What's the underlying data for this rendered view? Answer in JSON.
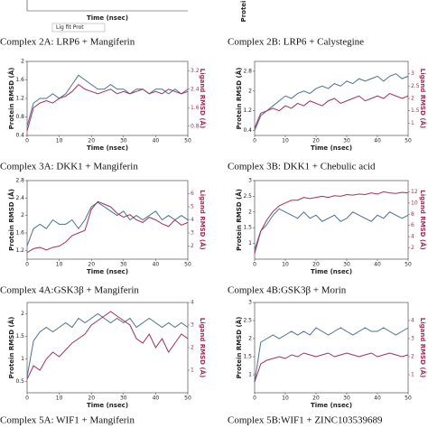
{
  "top_strip": {
    "x_label_left": "Time (nsec)",
    "y_label_right": "Protein",
    "legend": "Lig fit Prot"
  },
  "chart_data": [
    {
      "type": "line",
      "title": "Complex 2A: LRP6 + Mangiferin",
      "x_label": "Time (nsec)",
      "y_label": "Protein RMSD (Å)",
      "y2_label": "Ligand RMSD (Å)",
      "x": [
        0,
        2,
        4,
        6,
        8,
        10,
        12,
        14,
        16,
        18,
        20,
        22,
        24,
        26,
        28,
        30,
        32,
        34,
        36,
        38,
        40,
        42,
        44,
        46,
        48,
        50
      ],
      "xlim": [
        0,
        50
      ],
      "xticks": [
        0,
        10,
        20,
        30,
        40,
        50
      ],
      "ylim": [
        0.4,
        2.0
      ],
      "yticks": [
        0.4,
        0.8,
        1.2,
        1.6,
        2.0
      ],
      "y2lim": [
        0.4,
        3.6
      ],
      "y2ticks": [
        0.8,
        1.6,
        2.4,
        3.2
      ],
      "series": [
        {
          "color": "#4a7090",
          "values": [
            0.6,
            1.1,
            1.2,
            1.2,
            1.3,
            1.2,
            1.3,
            1.5,
            1.7,
            1.6,
            1.5,
            1.4,
            1.4,
            1.5,
            1.4,
            1.4,
            1.3,
            1.4,
            1.4,
            1.3,
            1.4,
            1.4,
            1.3,
            1.4,
            1.3,
            1.4
          ]
        },
        {
          "color": "#a0305a",
          "axis": "y2",
          "values": [
            0.6,
            1.6,
            1.8,
            1.9,
            1.8,
            2.0,
            2.1,
            2.3,
            2.6,
            2.4,
            2.3,
            2.2,
            2.3,
            2.4,
            2.2,
            2.3,
            2.2,
            2.3,
            2.4,
            2.2,
            2.3,
            2.2,
            2.4,
            2.3,
            2.2,
            2.3
          ]
        }
      ]
    },
    {
      "type": "line",
      "title": "Complex 2B: LRP6 + Calystegine",
      "x_label": "Time (nsec)",
      "y_label": "Protein RMSD (Å)",
      "y2_label": "Ligand RMSD (Å)",
      "x": [
        0,
        2,
        4,
        6,
        8,
        10,
        12,
        14,
        16,
        18,
        20,
        22,
        24,
        26,
        28,
        30,
        32,
        34,
        36,
        38,
        40,
        42,
        44,
        46,
        48,
        50
      ],
      "xlim": [
        0,
        50
      ],
      "xticks": [
        0,
        10,
        20,
        30,
        40,
        50
      ],
      "ylim": [
        0.2,
        3.2
      ],
      "yticks": [
        0.4,
        1.2,
        2.0,
        2.8
      ],
      "y2lim": [
        0.5,
        3.5
      ],
      "y2ticks": [
        1,
        1.5,
        2,
        2.5,
        3
      ],
      "series": [
        {
          "color": "#4a7090",
          "values": [
            0.4,
            1.0,
            1.2,
            1.4,
            1.6,
            1.8,
            1.7,
            1.9,
            2.0,
            1.9,
            2.1,
            2.2,
            2.1,
            2.3,
            2.2,
            2.4,
            2.3,
            2.5,
            2.4,
            2.5,
            2.6,
            2.4,
            2.6,
            2.7,
            2.5,
            2.6
          ]
        },
        {
          "color": "#a0305a",
          "axis": "y2",
          "values": [
            0.8,
            1.4,
            1.5,
            1.6,
            1.5,
            1.7,
            1.6,
            1.8,
            1.7,
            1.9,
            1.8,
            1.7,
            1.9,
            2.0,
            1.8,
            1.9,
            2.0,
            2.1,
            1.9,
            2.0,
            2.1,
            2.0,
            2.2,
            2.1,
            2.0,
            2.1
          ]
        }
      ]
    },
    {
      "type": "line",
      "title": "Complex 3A: DKK1 + Mangiferin",
      "x_label": "Time (nsec)",
      "y_label": "Protein RMSD (Å)",
      "y2_label": "Ligand RMSD (Å)",
      "x": [
        0,
        2,
        4,
        6,
        8,
        10,
        12,
        14,
        16,
        18,
        20,
        22,
        24,
        26,
        28,
        30,
        32,
        34,
        36,
        38,
        40,
        42,
        44,
        46,
        48,
        50
      ],
      "xlim": [
        0,
        50
      ],
      "xticks": [
        0,
        10,
        20,
        30,
        40,
        50
      ],
      "ylim": [
        1.0,
        2.8
      ],
      "yticks": [
        1.2,
        1.6,
        2.0,
        2.4,
        2.8
      ],
      "y2lim": [
        1,
        7
      ],
      "y2ticks": [
        2,
        3,
        4,
        5,
        6
      ],
      "series": [
        {
          "color": "#4a7090",
          "values": [
            1.3,
            1.7,
            1.8,
            1.7,
            1.9,
            1.8,
            1.8,
            1.9,
            1.7,
            1.9,
            2.2,
            2.3,
            2.2,
            2.1,
            2.0,
            2.1,
            1.9,
            2.0,
            1.9,
            2.0,
            2.1,
            1.9,
            2.0,
            1.9,
            2.0,
            1.9
          ]
        },
        {
          "color": "#a0305a",
          "axis": "y2",
          "values": [
            1.5,
            1.8,
            1.9,
            1.7,
            1.9,
            2.0,
            2.3,
            2.8,
            3.0,
            3.2,
            4.8,
            5.4,
            5.2,
            5.0,
            4.5,
            4.2,
            4.4,
            4.0,
            3.8,
            4.2,
            4.0,
            3.7,
            3.5,
            4.0,
            3.6,
            3.8
          ]
        }
      ]
    },
    {
      "type": "line",
      "title": "Complex 3B: DKK1 + Chebulic acid",
      "x_label": "Time (nsec)",
      "y_label": "Protein RMSD (Å)",
      "y2_label": "Ligand RMSD (Å)",
      "x": [
        0,
        2,
        4,
        6,
        8,
        10,
        12,
        14,
        16,
        18,
        20,
        22,
        24,
        26,
        28,
        30,
        32,
        34,
        36,
        38,
        40,
        42,
        44,
        46,
        48,
        50
      ],
      "xlim": [
        0,
        50
      ],
      "xticks": [
        0,
        10,
        20,
        30,
        40,
        50
      ],
      "ylim": [
        0.5,
        3.0
      ],
      "yticks": [
        1,
        1.5,
        2,
        2.5,
        3
      ],
      "y2lim": [
        0,
        14
      ],
      "y2ticks": [
        2,
        4,
        6,
        8,
        10,
        12
      ],
      "series": [
        {
          "color": "#4a7090",
          "values": [
            0.8,
            1.4,
            1.6,
            1.9,
            2.1,
            2.0,
            1.9,
            1.8,
            2.0,
            1.8,
            1.9,
            1.7,
            1.8,
            1.9,
            1.7,
            1.8,
            2.0,
            1.9,
            1.8,
            1.7,
            1.9,
            1.8,
            2.0,
            1.9,
            1.8,
            1.9
          ]
        },
        {
          "color": "#a0305a",
          "axis": "y2",
          "values": [
            1.0,
            5.0,
            7.0,
            8.5,
            9.5,
            10.0,
            10.5,
            10.5,
            11.0,
            10.8,
            11.0,
            11.2,
            11.0,
            11.3,
            11.2,
            11.5,
            11.4,
            11.6,
            11.5,
            11.8,
            11.6,
            12.0,
            11.8,
            11.7,
            11.9,
            11.8
          ]
        }
      ]
    },
    {
      "type": "line",
      "title": "Complex 4A:GSK3β + Mangiferin",
      "x_label": "Time (nsec)",
      "y_label": "Protein RMSD (Å)",
      "y2_label": "Ligand RMSD (Å)",
      "x": [
        0,
        2,
        4,
        6,
        8,
        10,
        12,
        14,
        16,
        18,
        20,
        22,
        24,
        26,
        28,
        30,
        32,
        34,
        36,
        38,
        40,
        42,
        44,
        46,
        48,
        50
      ],
      "xlim": [
        0,
        50
      ],
      "xticks": [
        0,
        10,
        20,
        30,
        40,
        50
      ],
      "ylim": [
        0.25,
        2.25
      ],
      "yticks": [
        0.5,
        1.0,
        1.5,
        2.0
      ],
      "y2lim": [
        0,
        4
      ],
      "y2ticks": [
        1,
        2,
        3,
        4
      ],
      "series": [
        {
          "color": "#4a7090",
          "values": [
            0.6,
            1.4,
            1.6,
            1.7,
            1.6,
            1.7,
            1.8,
            1.7,
            1.9,
            1.8,
            1.9,
            2.0,
            1.9,
            1.8,
            1.9,
            1.8,
            1.9,
            1.7,
            1.8,
            1.9,
            1.8,
            1.7,
            1.8,
            1.7,
            1.8,
            1.7
          ]
        },
        {
          "color": "#a0305a",
          "axis": "y2",
          "values": [
            0.6,
            1.2,
            1.0,
            1.5,
            1.8,
            1.6,
            1.9,
            2.2,
            2.4,
            2.6,
            3.0,
            3.2,
            3.4,
            3.6,
            3.4,
            3.2,
            3.0,
            2.4,
            2.2,
            2.6,
            2.0,
            2.4,
            1.8,
            2.2,
            2.6,
            2.4
          ]
        }
      ]
    },
    {
      "type": "line",
      "title": "Complex 4B:GSK3β + Morin",
      "x_label": "Time (nsec)",
      "y_label": "Protein RMSD (Å)",
      "y2_label": "Ligand RMSD (Å)",
      "x": [
        0,
        2,
        4,
        6,
        8,
        10,
        12,
        14,
        16,
        18,
        20,
        22,
        24,
        26,
        28,
        30,
        32,
        34,
        36,
        38,
        40,
        42,
        44,
        46,
        48,
        50
      ],
      "xlim": [
        0,
        50
      ],
      "xticks": [
        0,
        10,
        20,
        30,
        40,
        50
      ],
      "ylim": [
        0.5,
        3.0
      ],
      "yticks": [
        1,
        1.5,
        2,
        2.5,
        3
      ],
      "y2lim": [
        0,
        5
      ],
      "y2ticks": [
        1,
        2,
        3,
        4
      ],
      "series": [
        {
          "color": "#4a7090",
          "values": [
            0.8,
            1.9,
            2.0,
            2.1,
            2.0,
            2.1,
            2.2,
            2.1,
            2.2,
            2.1,
            2.3,
            2.2,
            2.1,
            2.2,
            2.3,
            2.2,
            2.1,
            2.2,
            2.3,
            2.2,
            2.2,
            2.3,
            2.2,
            2.1,
            2.2,
            2.3
          ]
        },
        {
          "color": "#a0305a",
          "axis": "y2",
          "values": [
            0.6,
            1.6,
            1.8,
            1.9,
            2.0,
            1.9,
            2.1,
            2.0,
            2.2,
            2.1,
            2.0,
            2.1,
            2.2,
            2.0,
            2.1,
            2.2,
            2.1,
            2.0,
            2.1,
            2.2,
            2.0,
            2.1,
            2.2,
            2.1,
            2.0,
            2.1
          ]
        }
      ]
    }
  ],
  "captions": [
    "Complex 5A: WIF1 + Mangiferin",
    "Complex 5B:WIF1 + ZINC103539689"
  ]
}
